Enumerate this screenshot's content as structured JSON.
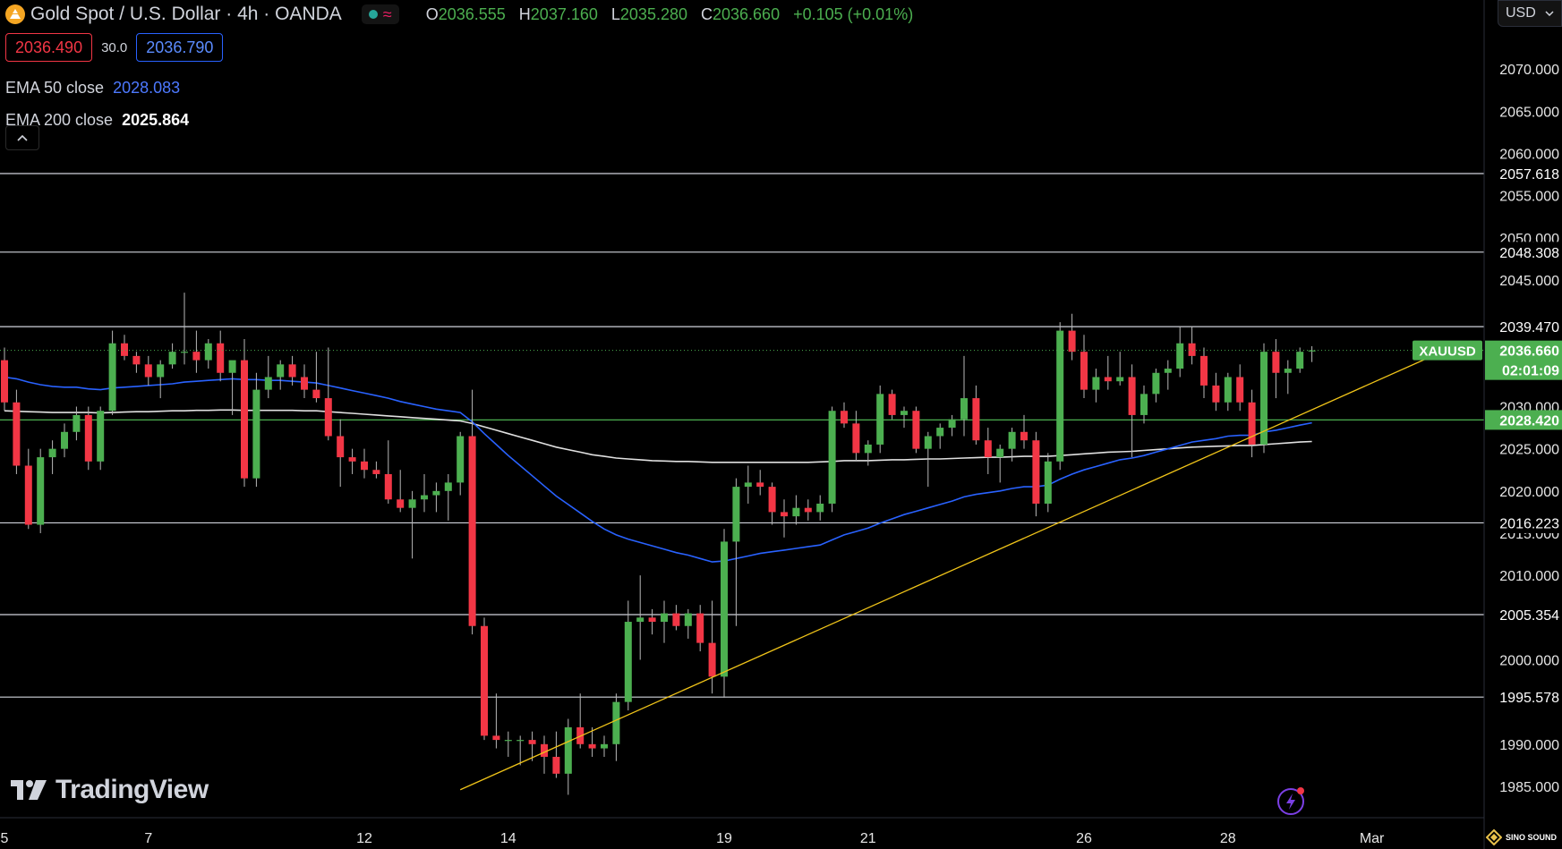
{
  "header": {
    "symbol_title": "Gold Spot / U.S. Dollar · 4h · OANDA",
    "wave_icon": "≈",
    "ohlc": {
      "o_label": "O",
      "o": "2036.555",
      "h_label": "H",
      "h": "2037.160",
      "l_label": "L",
      "l": "2035.280",
      "c_label": "C",
      "c": "2036.660",
      "change": "+0.105 (+0.01%)"
    },
    "sell_price": "2036.490",
    "spread": "30.0",
    "buy_price": "2036.790",
    "currency": "USD"
  },
  "indicators": {
    "ema50_label": "EMA 50 close",
    "ema50_value": "2028.083",
    "ema200_label": "EMA 200 close",
    "ema200_value": "2025.864"
  },
  "brand": {
    "name": "TradingView",
    "watermark": "SINO SOUND"
  },
  "colors": {
    "up": "#4caf50",
    "down": "#f23645",
    "ema50": "#2962ff",
    "ema200": "#e0e0e0",
    "trendline": "#f0c419",
    "level": "#d1d4dc",
    "last_price": "#4caf50"
  },
  "chart_data": {
    "type": "candlestick",
    "symbol": "XAUUSD",
    "timeframe": "4h",
    "ylim": [
      1981.5,
      2075.0
    ],
    "y_ticks": [
      "2070.000",
      "2065.000",
      "2060.000",
      "2055.000",
      "2050.000",
      "2045.000",
      "2040.000",
      "2035.000",
      "2030.000",
      "2025.000",
      "2020.000",
      "2015.000",
      "2010.000",
      "2005.000",
      "2000.000",
      "1995.000",
      "1990.000",
      "1985.000"
    ],
    "x_tick_labels": [
      {
        "label": "5",
        "bar": 0
      },
      {
        "label": "7",
        "bar": 12
      },
      {
        "label": "12",
        "bar": 30
      },
      {
        "label": "14",
        "bar": 42
      },
      {
        "label": "19",
        "bar": 60
      },
      {
        "label": "21",
        "bar": 72
      },
      {
        "label": "26",
        "bar": 90
      },
      {
        "label": "28",
        "bar": 102
      },
      {
        "label": "Mar",
        "bar": 114
      }
    ],
    "horizontal_levels": [
      {
        "value": 2057.618,
        "label": "2057.618",
        "color": "#d1d4dc"
      },
      {
        "value": 2048.308,
        "label": "2048.308",
        "color": "#d1d4dc"
      },
      {
        "value": 2039.47,
        "label": "2039.470",
        "color": "#d1d4dc"
      },
      {
        "value": 2028.42,
        "label": "2028.420",
        "color": "#4caf50"
      },
      {
        "value": 2016.223,
        "label": "2016.223",
        "color": "#d1d4dc"
      },
      {
        "value": 2005.354,
        "label": "2005.354",
        "color": "#d1d4dc"
      },
      {
        "value": 1995.578,
        "label": "1995.578",
        "color": "#d1d4dc"
      }
    ],
    "last_price": {
      "value": 2036.66,
      "label": "2036.660",
      "countdown": "02:01:09",
      "symbol": "XAUUSD"
    },
    "trendline": {
      "from": {
        "bar": 38,
        "price": 1984.6
      },
      "to": {
        "bar": 120,
        "price": 2036.6
      }
    },
    "candles": [
      [
        2035.5,
        2037.0,
        2029.5,
        2030.5
      ],
      [
        2030.5,
        2032.0,
        2022.0,
        2023.0
      ],
      [
        2023.0,
        2025.0,
        2015.5,
        2016.0
      ],
      [
        2016.0,
        2025.0,
        2015.0,
        2024.0
      ],
      [
        2024.0,
        2026.0,
        2022.0,
        2025.0
      ],
      [
        2025.0,
        2028.0,
        2024.0,
        2027.0
      ],
      [
        2027.0,
        2030.0,
        2026.0,
        2029.0
      ],
      [
        2029.0,
        2030.0,
        2022.5,
        2023.5
      ],
      [
        2023.5,
        2030.0,
        2022.5,
        2029.5
      ],
      [
        2029.5,
        2039.0,
        2029.0,
        2037.5
      ],
      [
        2037.5,
        2038.5,
        2035.5,
        2036.0
      ],
      [
        2036.0,
        2036.5,
        2034.0,
        2035.0
      ],
      [
        2035.0,
        2036.0,
        2032.5,
        2033.5
      ],
      [
        2033.5,
        2035.5,
        2031.0,
        2035.0
      ],
      [
        2035.0,
        2037.5,
        2034.5,
        2036.5
      ],
      [
        2036.5,
        2043.5,
        2035.0,
        2036.5
      ],
      [
        2036.5,
        2039.0,
        2034.0,
        2035.5
      ],
      [
        2035.5,
        2038.0,
        2034.5,
        2037.5
      ],
      [
        2037.5,
        2039.0,
        2033.0,
        2034.0
      ],
      [
        2034.0,
        2035.0,
        2029.0,
        2035.5
      ],
      [
        2035.5,
        2038.0,
        2020.5,
        2021.5
      ],
      [
        2021.5,
        2034.0,
        2020.5,
        2032.0
      ],
      [
        2032.0,
        2036.0,
        2031.0,
        2033.5
      ],
      [
        2033.5,
        2035.5,
        2032.0,
        2035.0
      ],
      [
        2035.0,
        2036.0,
        2032.5,
        2033.5
      ],
      [
        2033.5,
        2035.0,
        2031.0,
        2032.0
      ],
      [
        2032.0,
        2036.5,
        2030.5,
        2031.0
      ],
      [
        2031.0,
        2037.0,
        2026.0,
        2026.5
      ],
      [
        2026.5,
        2028.5,
        2020.5,
        2024.0
      ],
      [
        2024.0,
        2025.0,
        2022.0,
        2023.5
      ],
      [
        2023.5,
        2025.0,
        2021.5,
        2022.5
      ],
      [
        2022.5,
        2023.5,
        2021.5,
        2022.0
      ],
      [
        2022.0,
        2026.0,
        2018.5,
        2019.0
      ],
      [
        2019.0,
        2022.5,
        2017.5,
        2018.0
      ],
      [
        2018.0,
        2020.0,
        2012.0,
        2019.0
      ],
      [
        2019.0,
        2022.0,
        2017.5,
        2019.5
      ],
      [
        2019.5,
        2021.0,
        2017.5,
        2020.0
      ],
      [
        2020.0,
        2022.0,
        2016.5,
        2021.0
      ],
      [
        2021.0,
        2027.0,
        2019.5,
        2026.5
      ],
      [
        2026.5,
        2032.0,
        2003.0,
        2004.0
      ],
      [
        2004.0,
        2005.0,
        1990.5,
        1991.0
      ],
      [
        1991.0,
        1996.0,
        1989.5,
        1990.5
      ],
      [
        1990.5,
        1991.5,
        1988.5,
        1990.5
      ],
      [
        1990.5,
        1991.0,
        1987.5,
        1990.5
      ],
      [
        1990.5,
        1991.5,
        1988.0,
        1990.0
      ],
      [
        1990.0,
        1991.0,
        1986.5,
        1988.5
      ],
      [
        1988.5,
        1991.5,
        1986.0,
        1986.5
      ],
      [
        1986.5,
        1993.0,
        1984.0,
        1992.0
      ],
      [
        1992.0,
        1996.0,
        1989.5,
        1990.0
      ],
      [
        1990.0,
        1992.0,
        1988.5,
        1989.5
      ],
      [
        1989.5,
        1991.0,
        1988.5,
        1990.0
      ],
      [
        1990.0,
        1996.0,
        1988.0,
        1995.0
      ],
      [
        1995.0,
        2007.0,
        1994.0,
        2004.5
      ],
      [
        2004.5,
        2010.0,
        2000.0,
        2005.0
      ],
      [
        2005.0,
        2006.0,
        2003.0,
        2004.5
      ],
      [
        2004.5,
        2007.0,
        2002.0,
        2005.5
      ],
      [
        2005.5,
        2006.5,
        2003.5,
        2004.0
      ],
      [
        2004.0,
        2006.0,
        2002.5,
        2005.5
      ],
      [
        2005.5,
        2006.5,
        2001.0,
        2002.0
      ],
      [
        2002.0,
        2007.0,
        1996.0,
        1998.0
      ],
      [
        1998.0,
        2015.5,
        1995.5,
        2014.0
      ],
      [
        2014.0,
        2021.5,
        2004.0,
        2020.5
      ],
      [
        2020.5,
        2023.0,
        2018.5,
        2021.0
      ],
      [
        2021.0,
        2022.5,
        2019.5,
        2020.5
      ],
      [
        2020.5,
        2021.0,
        2016.0,
        2017.5
      ],
      [
        2017.5,
        2019.0,
        2014.5,
        2017.0
      ],
      [
        2017.0,
        2019.5,
        2016.0,
        2018.0
      ],
      [
        2018.0,
        2019.0,
        2016.5,
        2017.5
      ],
      [
        2017.5,
        2019.5,
        2016.5,
        2018.5
      ],
      [
        2018.5,
        2030.0,
        2017.5,
        2029.5
      ],
      [
        2029.5,
        2030.5,
        2027.5,
        2028.0
      ],
      [
        2028.0,
        2029.5,
        2023.5,
        2024.5
      ],
      [
        2024.5,
        2026.0,
        2023.0,
        2025.5
      ],
      [
        2025.5,
        2032.5,
        2024.5,
        2031.5
      ],
      [
        2031.5,
        2032.0,
        2028.5,
        2029.0
      ],
      [
        2029.0,
        2030.0,
        2027.5,
        2029.5
      ],
      [
        2029.5,
        2030.0,
        2024.5,
        2025.0
      ],
      [
        2025.0,
        2027.0,
        2020.5,
        2026.5
      ],
      [
        2026.5,
        2028.0,
        2025.0,
        2027.5
      ],
      [
        2027.5,
        2029.0,
        2026.5,
        2028.5
      ],
      [
        2028.5,
        2036.0,
        2026.5,
        2031.0
      ],
      [
        2031.0,
        2032.5,
        2025.5,
        2026.0
      ],
      [
        2026.0,
        2027.5,
        2022.0,
        2024.0
      ],
      [
        2024.0,
        2025.5,
        2021.0,
        2025.0
      ],
      [
        2025.0,
        2027.5,
        2023.5,
        2027.0
      ],
      [
        2027.0,
        2029.0,
        2025.0,
        2026.0
      ],
      [
        2026.0,
        2027.0,
        2017.0,
        2018.5
      ],
      [
        2018.5,
        2024.5,
        2017.5,
        2023.5
      ],
      [
        2023.5,
        2040.0,
        2022.5,
        2039.0
      ],
      [
        2039.0,
        2041.0,
        2035.5,
        2036.5
      ],
      [
        2036.5,
        2038.5,
        2031.0,
        2032.0
      ],
      [
        2032.0,
        2034.5,
        2030.5,
        2033.5
      ],
      [
        2033.5,
        2036.0,
        2032.0,
        2033.0
      ],
      [
        2033.0,
        2036.5,
        2032.5,
        2033.5
      ],
      [
        2033.5,
        2035.0,
        2024.0,
        2029.0
      ],
      [
        2029.0,
        2032.5,
        2028.0,
        2031.5
      ],
      [
        2031.5,
        2034.5,
        2030.5,
        2034.0
      ],
      [
        2034.0,
        2035.5,
        2032.0,
        2034.5
      ],
      [
        2034.5,
        2039.5,
        2033.5,
        2037.5
      ],
      [
        2037.5,
        2039.5,
        2035.0,
        2036.0
      ],
      [
        2036.0,
        2037.0,
        2031.0,
        2032.5
      ],
      [
        2032.5,
        2034.0,
        2029.5,
        2030.5
      ],
      [
        2030.5,
        2034.0,
        2029.5,
        2033.5
      ],
      [
        2033.5,
        2035.0,
        2029.5,
        2030.5
      ],
      [
        2030.5,
        2032.0,
        2024.0,
        2025.5
      ],
      [
        2025.5,
        2037.5,
        2024.5,
        2036.5
      ],
      [
        2036.5,
        2038.0,
        2031.0,
        2034.0
      ],
      [
        2034.0,
        2035.5,
        2031.5,
        2034.5
      ],
      [
        2034.5,
        2037.0,
        2034.0,
        2036.5
      ],
      [
        2036.555,
        2037.16,
        2035.28,
        2036.66
      ]
    ],
    "ema50": [
      2033.5,
      2033.3,
      2032.9,
      2032.6,
      2032.4,
      2032.3,
      2032.3,
      2032.1,
      2032.0,
      2032.2,
      2032.3,
      2032.4,
      2032.5,
      2032.6,
      2032.7,
      2032.9,
      2033.0,
      2033.1,
      2033.2,
      2033.3,
      2033.2,
      2033.2,
      2033.1,
      2033.1,
      2033.0,
      2032.9,
      2032.8,
      2032.5,
      2032.2,
      2031.9,
      2031.6,
      2031.3,
      2031.0,
      2030.6,
      2030.3,
      2030.0,
      2029.7,
      2029.5,
      2029.3,
      2028.2,
      2026.8,
      2025.5,
      2024.2,
      2023.0,
      2021.8,
      2020.6,
      2019.4,
      2018.4,
      2017.4,
      2016.4,
      2015.5,
      2014.8,
      2014.3,
      2013.9,
      2013.5,
      2013.1,
      2012.7,
      2012.4,
      2012.0,
      2011.6,
      2011.7,
      2012.0,
      2012.3,
      2012.6,
      2012.8,
      2013.0,
      2013.2,
      2013.4,
      2013.6,
      2014.2,
      2014.8,
      2015.2,
      2015.6,
      2016.2,
      2016.7,
      2017.2,
      2017.6,
      2018.0,
      2018.4,
      2018.8,
      2019.3,
      2019.6,
      2019.8,
      2020.0,
      2020.3,
      2020.5,
      2020.5,
      2020.7,
      2021.4,
      2022.0,
      2022.5,
      2022.9,
      2023.3,
      2023.7,
      2023.9,
      2024.2,
      2024.6,
      2025.0,
      2025.4,
      2025.8,
      2026.0,
      2026.2,
      2026.5,
      2026.6,
      2026.6,
      2027.0,
      2027.2,
      2027.5,
      2027.8,
      2028.08
    ],
    "ema200": [
      2029.5,
      2029.45,
      2029.4,
      2029.35,
      2029.3,
      2029.3,
      2029.3,
      2029.3,
      2029.25,
      2029.3,
      2029.35,
      2029.4,
      2029.4,
      2029.45,
      2029.5,
      2029.5,
      2029.55,
      2029.55,
      2029.6,
      2029.6,
      2029.55,
      2029.55,
      2029.55,
      2029.55,
      2029.55,
      2029.5,
      2029.5,
      2029.4,
      2029.3,
      2029.2,
      2029.1,
      2029.0,
      2028.9,
      2028.8,
      2028.7,
      2028.6,
      2028.5,
      2028.4,
      2028.3,
      2028.0,
      2027.6,
      2027.2,
      2026.8,
      2026.4,
      2026.0,
      2025.6,
      2025.2,
      2024.9,
      2024.6,
      2024.3,
      2024.1,
      2023.9,
      2023.8,
      2023.7,
      2023.6,
      2023.55,
      2023.5,
      2023.5,
      2023.45,
      2023.4,
      2023.4,
      2023.4,
      2023.4,
      2023.4,
      2023.4,
      2023.4,
      2023.4,
      2023.4,
      2023.45,
      2023.5,
      2023.6,
      2023.6,
      2023.6,
      2023.65,
      2023.7,
      2023.7,
      2023.75,
      2023.8,
      2023.8,
      2023.85,
      2023.9,
      2023.95,
      2024.0,
      2024.0,
      2024.05,
      2024.1,
      2024.1,
      2024.1,
      2024.2,
      2024.3,
      2024.4,
      2024.5,
      2024.6,
      2024.65,
      2024.7,
      2024.8,
      2024.9,
      2025.0,
      2025.1,
      2025.2,
      2025.25,
      2025.3,
      2025.35,
      2025.4,
      2025.4,
      2025.5,
      2025.6,
      2025.7,
      2025.8,
      2025.864
    ]
  }
}
